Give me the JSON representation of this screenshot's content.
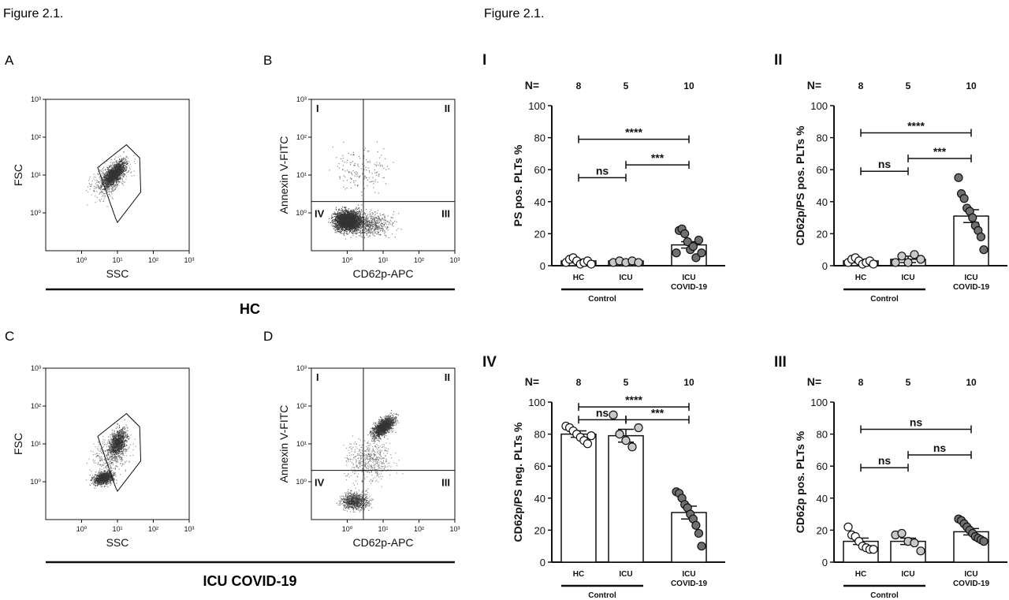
{
  "figure_titles": [
    "Figure 2.1.",
    "Figure 2.1."
  ],
  "panel_letters": [
    "A",
    "B",
    "C",
    "D"
  ],
  "group_labels": {
    "top": "HC",
    "bottom": "ICU COVID-19"
  },
  "colors": {
    "ink": "#111111",
    "dot_light": "#ffffff",
    "dot_mid": "#c8c8c8",
    "dot_dark": "#707070"
  },
  "chart_data": [
    {
      "id": "A",
      "type": "scatter",
      "title": "A",
      "xlabel": "SSC",
      "ylabel": "FSC",
      "scale": "log",
      "xlim": [
        0.1,
        1000
      ],
      "ylim": [
        0.1,
        1000
      ],
      "xticks": [
        "10⁰",
        "10¹",
        "10²",
        "10³"
      ],
      "yticks": [
        "10⁰",
        "10¹",
        "10²",
        "10³"
      ],
      "gate": "polygon"
    },
    {
      "id": "B",
      "type": "scatter",
      "title": "B",
      "xlabel": "CD62p-APC",
      "ylabel": "Annexin V-FITC",
      "scale": "log",
      "xlim": [
        0.1,
        1000
      ],
      "ylim": [
        0.1,
        1000
      ],
      "xticks": [
        "10⁰",
        "10¹",
        "10²",
        "10³"
      ],
      "yticks": [
        "10⁰",
        "10¹",
        "10²",
        "10³"
      ],
      "quadrants": [
        "I",
        "II",
        "III",
        "IV"
      ]
    },
    {
      "id": "C",
      "type": "scatter",
      "title": "C",
      "xlabel": "SSC",
      "ylabel": "FSC",
      "scale": "log",
      "xlim": [
        0.1,
        1000
      ],
      "ylim": [
        0.1,
        1000
      ],
      "xticks": [
        "10⁰",
        "10¹",
        "10²",
        "10³"
      ],
      "yticks": [
        "10⁰",
        "10¹",
        "10²",
        "10³"
      ],
      "gate": "polygon"
    },
    {
      "id": "D",
      "type": "scatter",
      "title": "D",
      "xlabel": "CD62p-APC",
      "ylabel": "Annexin V-FITC",
      "scale": "log",
      "xlim": [
        0.1,
        1000
      ],
      "ylim": [
        0.1,
        1000
      ],
      "xticks": [
        "10⁰",
        "10¹",
        "10²",
        "10³"
      ],
      "yticks": [
        "10⁰",
        "10¹",
        "10²",
        "10³"
      ],
      "quadrants": [
        "I",
        "II",
        "III",
        "IV"
      ]
    },
    {
      "id": "I",
      "type": "bar",
      "title": "I",
      "ylabel": "PS pos. PLTs %",
      "ylim": [
        0,
        100
      ],
      "yticks": [
        0,
        20,
        40,
        60,
        80,
        100
      ],
      "categories": [
        "HC",
        "ICU",
        "ICU COVID-19"
      ],
      "n_label": "N=",
      "n": [
        "8",
        "5",
        "10"
      ],
      "group_label": "Control",
      "means": [
        3,
        3,
        13
      ],
      "sems": [
        1,
        0.5,
        2
      ],
      "points": [
        [
          2,
          4,
          5,
          3,
          1,
          2,
          3,
          1
        ],
        [
          2,
          3,
          2,
          3,
          2
        ],
        [
          8,
          22,
          23,
          20,
          15,
          10,
          12,
          5,
          16,
          8
        ]
      ],
      "comparisons": [
        {
          "from": "HC",
          "to": "ICU",
          "label": "ns"
        },
        {
          "from": "ICU",
          "to": "ICU COVID-19",
          "label": "***"
        },
        {
          "from": "HC",
          "to": "ICU COVID-19",
          "label": "****"
        }
      ]
    },
    {
      "id": "II",
      "type": "bar",
      "title": "II",
      "ylabel": "CD62p/PS pos. PLTs %",
      "ylim": [
        0,
        100
      ],
      "yticks": [
        0,
        20,
        40,
        60,
        80,
        100
      ],
      "categories": [
        "HC",
        "ICU",
        "ICU COVID-19"
      ],
      "n_label": "N=",
      "n": [
        "8",
        "5",
        "10"
      ],
      "group_label": "Control",
      "means": [
        3,
        4,
        31
      ],
      "sems": [
        1,
        2,
        4
      ],
      "points": [
        [
          2,
          4,
          5,
          3,
          1,
          2,
          3,
          1
        ],
        [
          2,
          6,
          2,
          7,
          4
        ],
        [
          55,
          45,
          42,
          36,
          34,
          30,
          25,
          22,
          18,
          10
        ]
      ],
      "comparisons": [
        {
          "from": "HC",
          "to": "ICU",
          "label": "ns"
        },
        {
          "from": "ICU",
          "to": "ICU COVID-19",
          "label": "***"
        },
        {
          "from": "HC",
          "to": "ICU COVID-19",
          "label": "****"
        }
      ]
    },
    {
      "id": "IV",
      "type": "bar",
      "title": "IV",
      "ylabel": "CD62p/PS neg. PLTs %",
      "ylim": [
        0,
        100
      ],
      "yticks": [
        0,
        20,
        40,
        60,
        80,
        100
      ],
      "categories": [
        "HC",
        "ICU",
        "ICU COVID-19"
      ],
      "n_label": "N=",
      "n": [
        "8",
        "5",
        "10"
      ],
      "group_label": "Control",
      "means": [
        80,
        79,
        31
      ],
      "sems": [
        2,
        4,
        4
      ],
      "points": [
        [
          85,
          84,
          82,
          80,
          78,
          76,
          74,
          79
        ],
        [
          92,
          80,
          76,
          72,
          84
        ],
        [
          44,
          43,
          40,
          36,
          34,
          30,
          27,
          23,
          18,
          10
        ]
      ],
      "comparisons": [
        {
          "from": "HC",
          "to": "ICU",
          "label": "ns"
        },
        {
          "from": "ICU",
          "to": "ICU COVID-19",
          "label": "***"
        },
        {
          "from": "HC",
          "to": "ICU COVID-19",
          "label": "****"
        }
      ]
    },
    {
      "id": "III",
      "type": "bar",
      "title": "III",
      "ylabel": "CD62p pos. PLTs %",
      "ylim": [
        0,
        100
      ],
      "yticks": [
        0,
        20,
        40,
        60,
        80,
        100
      ],
      "categories": [
        "HC",
        "ICU",
        "ICU COVID-19"
      ],
      "n_label": "N=",
      "n": [
        "8",
        "5",
        "10"
      ],
      "group_label": "Control",
      "means": [
        13,
        13,
        19
      ],
      "sems": [
        2,
        2,
        2
      ],
      "points": [
        [
          22,
          17,
          16,
          13,
          10,
          9,
          8,
          8
        ],
        [
          17,
          18,
          13,
          12,
          7
        ],
        [
          27,
          26,
          24,
          22,
          20,
          18,
          16,
          15,
          14,
          13
        ]
      ],
      "comparisons": [
        {
          "from": "HC",
          "to": "ICU",
          "label": "ns"
        },
        {
          "from": "ICU",
          "to": "ICU COVID-19",
          "label": "ns"
        },
        {
          "from": "HC",
          "to": "ICU COVID-19",
          "label": "ns"
        }
      ]
    }
  ]
}
